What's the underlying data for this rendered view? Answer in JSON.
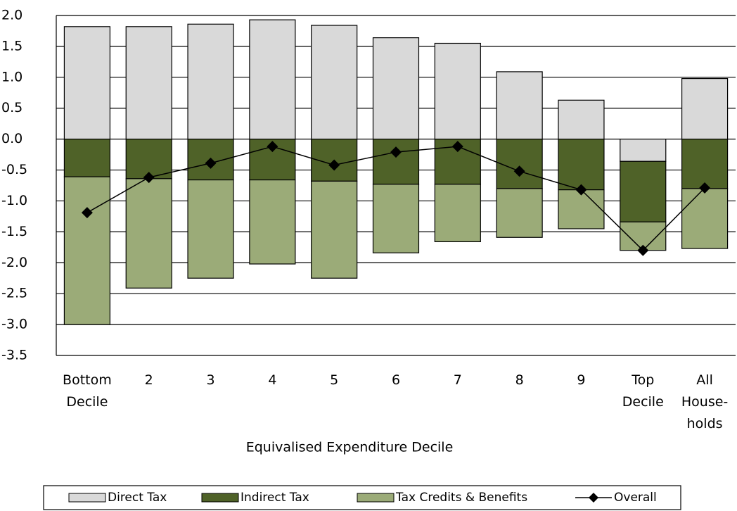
{
  "chart_data": {
    "type": "stacked-bar-line",
    "xlabel": "Equivalised Expenditure Decile",
    "categories": [
      "Bottom\nDecile",
      "2",
      "3",
      "4",
      "5",
      "6",
      "7",
      "8",
      "9",
      "Top\nDecile",
      "All\nHouse-\nholds"
    ],
    "series": [
      {
        "name": "Direct Tax",
        "color": "#d9d9d9",
        "kind": "bar",
        "values": [
          1.82,
          1.82,
          1.86,
          1.93,
          1.84,
          1.64,
          1.55,
          1.09,
          0.63,
          -0.36,
          0.98
        ]
      },
      {
        "name": "Indirect Tax",
        "color": "#4f6228",
        "kind": "bar",
        "values": [
          -0.61,
          -0.64,
          -0.66,
          -0.66,
          -0.68,
          -0.73,
          -0.73,
          -0.8,
          -0.82,
          -0.98,
          -0.8
        ]
      },
      {
        "name": "Tax Credits & Benefits",
        "color": "#9bab78",
        "kind": "bar",
        "values": [
          -2.39,
          -1.77,
          -1.59,
          -1.36,
          -1.57,
          -1.11,
          -0.93,
          -0.79,
          -0.63,
          -0.46,
          -0.97
        ]
      },
      {
        "name": "Overall",
        "color": "#000000",
        "kind": "line",
        "values": [
          -1.19,
          -0.62,
          -0.39,
          -0.12,
          -0.42,
          -0.21,
          -0.12,
          -0.52,
          -0.82,
          -1.8,
          -0.79
        ]
      }
    ],
    "ylim": [
      -3.5,
      2
    ],
    "yticks": [
      {
        "value": -3.5,
        "label": "-3.5"
      },
      {
        "value": -3,
        "label": "-3.0"
      },
      {
        "value": -2.5,
        "label": "-2.5"
      },
      {
        "value": -2,
        "label": "-2.0"
      },
      {
        "value": -1.5,
        "label": "-1.5"
      },
      {
        "value": -1,
        "label": "-1.0"
      },
      {
        "value": -0.5,
        "label": "-0.5"
      },
      {
        "value": 0,
        "label": "0.0"
      },
      0.5,
      {
        "value": 1,
        "label": "1.0"
      },
      1.5,
      {
        "value": 2,
        "label": "2.0"
      }
    ],
    "grid": true,
    "legend": "bottom"
  }
}
